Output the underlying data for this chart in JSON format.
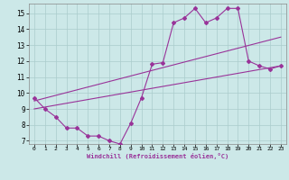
{
  "title": "",
  "xlabel": "Windchill (Refroidissement éolien,°C)",
  "bg_color": "#cce8e8",
  "line_color": "#993399",
  "grid_color": "#aacccc",
  "xlim": [
    -0.5,
    23.5
  ],
  "ylim": [
    6.8,
    15.6
  ],
  "xticks": [
    0,
    1,
    2,
    3,
    4,
    5,
    6,
    7,
    8,
    9,
    10,
    11,
    12,
    13,
    14,
    15,
    16,
    17,
    18,
    19,
    20,
    21,
    22,
    23
  ],
  "yticks": [
    7,
    8,
    9,
    10,
    11,
    12,
    13,
    14,
    15
  ],
  "line1_x": [
    0,
    1,
    2,
    3,
    4,
    5,
    6,
    7,
    8,
    9,
    10,
    11,
    12,
    13,
    14,
    15,
    16,
    17,
    18,
    19,
    20,
    21,
    22,
    23
  ],
  "line1_y": [
    9.7,
    9.0,
    8.5,
    7.8,
    7.8,
    7.3,
    7.3,
    7.0,
    6.8,
    8.1,
    9.7,
    11.8,
    11.9,
    14.4,
    14.7,
    15.3,
    14.4,
    14.7,
    15.3,
    15.3,
    12.0,
    11.7,
    11.5,
    11.7
  ],
  "line2_x": [
    0,
    23
  ],
  "line2_y": [
    9.0,
    11.7
  ],
  "line3_x": [
    0,
    23
  ],
  "line3_y": [
    9.5,
    13.5
  ]
}
